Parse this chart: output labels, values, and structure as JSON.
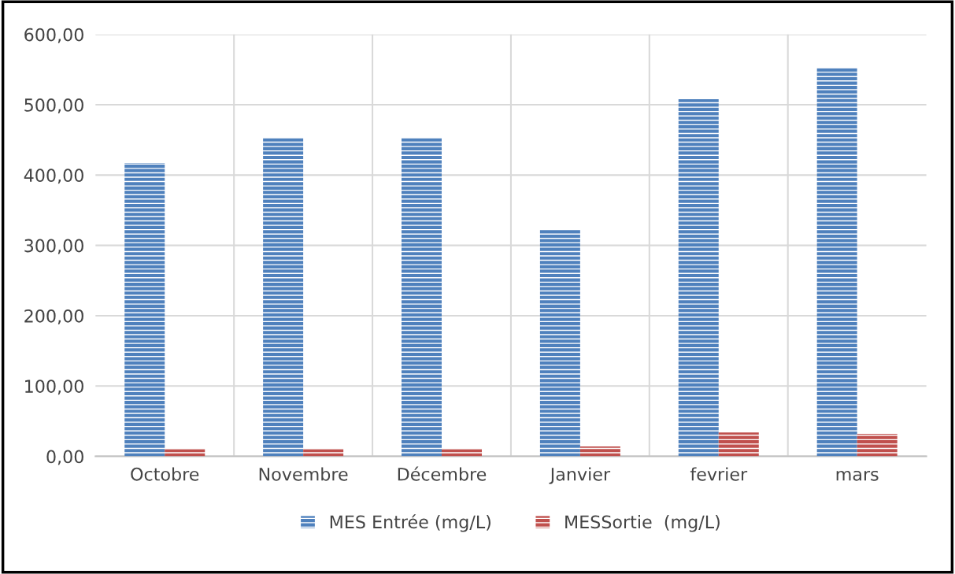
{
  "chart_data": {
    "type": "bar",
    "categories": [
      "Octobre",
      "Novembre",
      "Décembre",
      "Janvier",
      "fevrier",
      "mars"
    ],
    "series": [
      {
        "name": "MES Entrée (mg/L)",
        "color": "#4f81bd",
        "values": [
          417,
          453,
          453,
          323,
          508,
          552
        ]
      },
      {
        "name": "MESSortie  (mg/L)",
        "color": "#c0504d",
        "values": [
          10,
          10,
          10,
          14,
          34,
          32
        ]
      }
    ],
    "ylim": [
      0,
      600
    ],
    "yticks": [
      {
        "value": 0,
        "label": "0,00"
      },
      {
        "value": 100,
        "label": "100,00"
      },
      {
        "value": 200,
        "label": "200,00"
      },
      {
        "value": 300,
        "label": "300,00"
      },
      {
        "value": 400,
        "label": "400,00"
      },
      {
        "value": 500,
        "label": "500,00"
      },
      {
        "value": 600,
        "label": "600,00"
      }
    ],
    "grid": true,
    "legend": "bottom"
  }
}
